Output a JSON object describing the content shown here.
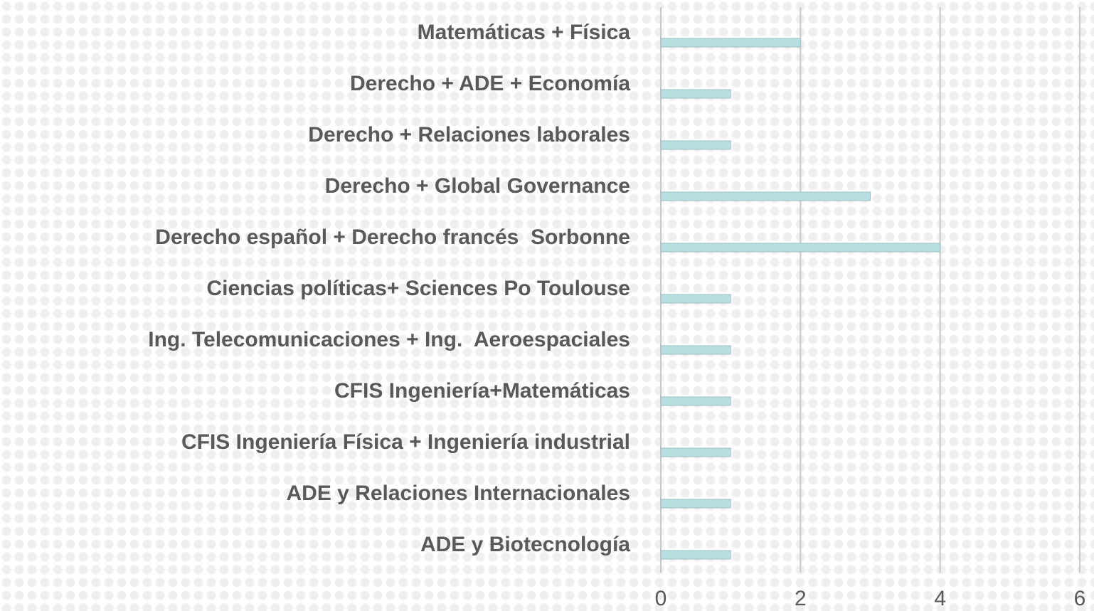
{
  "chart_data": {
    "type": "bar",
    "orientation": "horizontal",
    "categories": [
      "Matemáticas + Física",
      "Derecho + ADE + Economía",
      "Derecho + Relaciones laborales",
      "Derecho + Global Governance",
      "Derecho español + Derecho francés  Sorbonne",
      "Ciencias políticas+ Sciences Po Toulouse",
      "Ing. Telecomunicaciones + Ing.  Aeroespaciales",
      "CFIS Ingeniería+Matemáticas",
      "CFIS Ingeniería Física + Ingeniería industrial",
      "ADE y Relaciones Internacionales",
      "ADE y Biotecnología"
    ],
    "values": [
      2,
      1,
      1,
      3,
      4,
      1,
      1,
      1,
      1,
      1,
      1
    ],
    "color": "#b7dfe1",
    "xlim": [
      0,
      6
    ],
    "xticks": [
      0,
      2,
      4,
      6
    ],
    "grid": true
  }
}
